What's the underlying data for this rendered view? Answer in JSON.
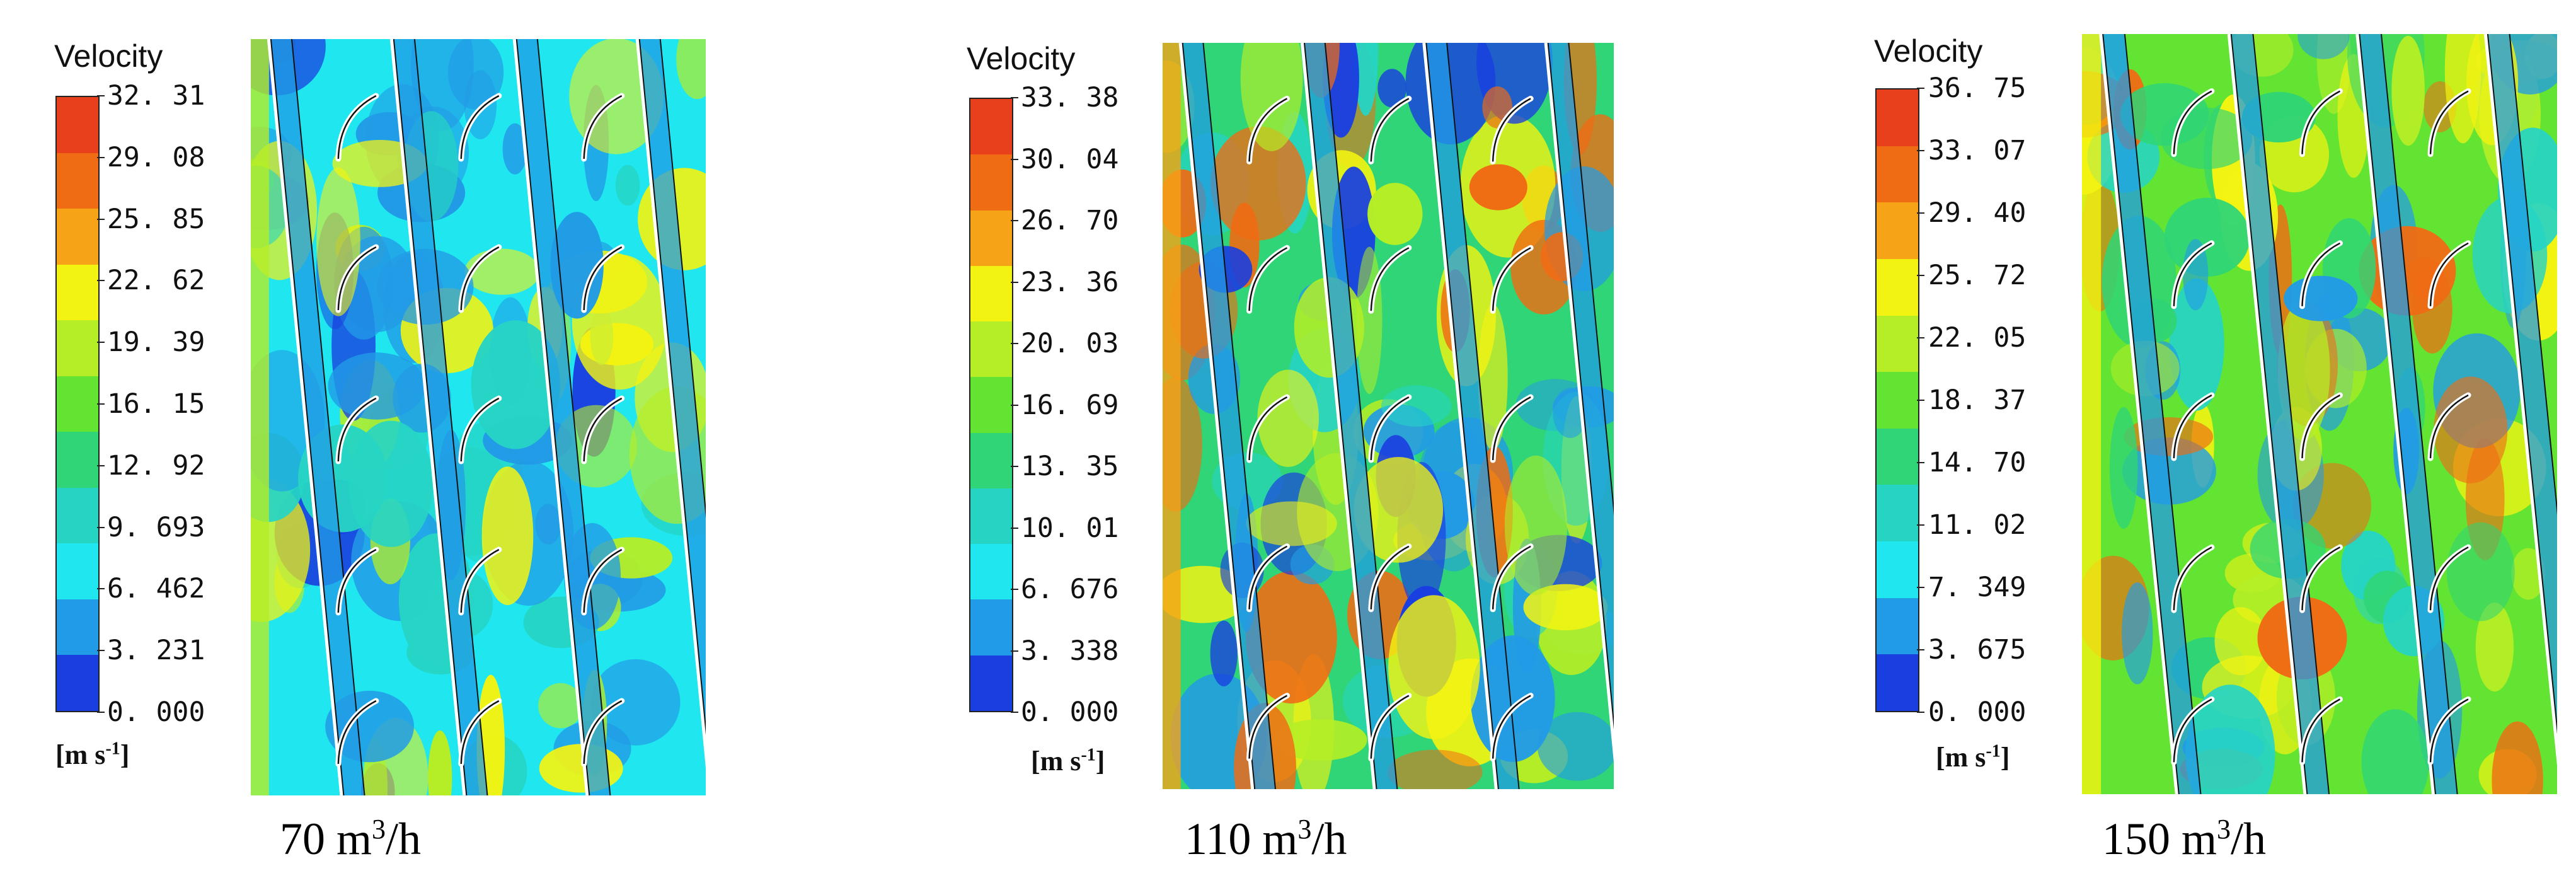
{
  "panels": [
    {
      "legend_title": "Velocity",
      "unit_base": "[m s",
      "unit_exp": "-1",
      "unit_close": "]",
      "ticks": [
        "32. 31",
        "29. 08",
        "25. 85",
        "22. 62",
        "19. 39",
        "16. 15",
        "12. 92",
        "9. 693",
        "6. 462",
        "3. 231",
        "0. 000"
      ],
      "caption_value": "70 m",
      "caption_exp": "3",
      "caption_unit": "/h"
    },
    {
      "legend_title": "Velocity",
      "unit_base": "[m s",
      "unit_exp": "-1",
      "unit_close": "]",
      "ticks": [
        "33. 38",
        "30. 04",
        "26. 70",
        "23. 36",
        "20. 03",
        "16. 69",
        "13. 35",
        "10. 01",
        "6. 676",
        "3. 338",
        "0. 000"
      ],
      "caption_value": "110 m",
      "caption_exp": "3",
      "caption_unit": "/h"
    },
    {
      "legend_title": "Velocity",
      "unit_base": "[m s",
      "unit_exp": "-1",
      "unit_close": "]",
      "ticks": [
        "36. 75",
        "33. 07",
        "29. 40",
        "25. 72",
        "22. 05",
        "18. 37",
        "14. 70",
        "11. 02",
        "7. 349",
        "3. 675",
        "0. 000"
      ],
      "caption_value": "150 m",
      "caption_exp": "3",
      "caption_unit": "/h"
    }
  ],
  "colormap": [
    "#e8401c",
    "#ef6c14",
    "#f6a318",
    "#f3f312",
    "#b5ee26",
    "#63e432",
    "#2fd576",
    "#26d4c4",
    "#1fe6ef",
    "#229be6",
    "#1a3fe0"
  ]
}
